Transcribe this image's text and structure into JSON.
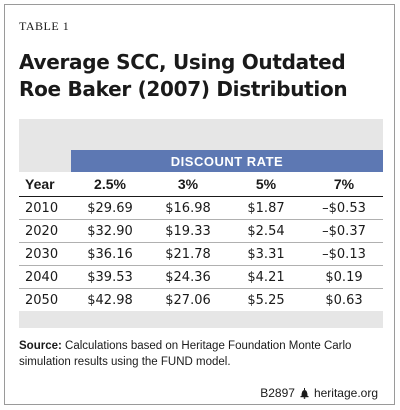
{
  "table_label": "TABLE 1",
  "title": "Average SCC, Using Outdated Roe Baker (2007) Distribution",
  "group_header": "DISCOUNT RATE",
  "columns": [
    "Year",
    "2.5%",
    "3%",
    "5%",
    "7%"
  ],
  "rows": [
    [
      "2010",
      "$29.69",
      "$16.98",
      "$1.87",
      "–$0.53"
    ],
    [
      "2020",
      "$32.90",
      "$19.33",
      "$2.54",
      "–$0.37"
    ],
    [
      "2030",
      "$36.16",
      "$21.78",
      "$3.31",
      "–$0.13"
    ],
    [
      "2040",
      "$39.53",
      "$24.36",
      "$4.21",
      "$0.19"
    ],
    [
      "2050",
      "$42.98",
      "$27.06",
      "$5.25",
      "$0.63"
    ]
  ],
  "source": {
    "label": "Source:",
    "text": "Calculations based on Heritage Foundation Monte Carlo simulation results using the FUND model."
  },
  "footer": {
    "code": "B2897",
    "site": "heritage.org",
    "icon": "liberty-bell-icon"
  },
  "colors": {
    "header_band": "#5d78b3",
    "panel_gray": "#e6e6e6"
  }
}
